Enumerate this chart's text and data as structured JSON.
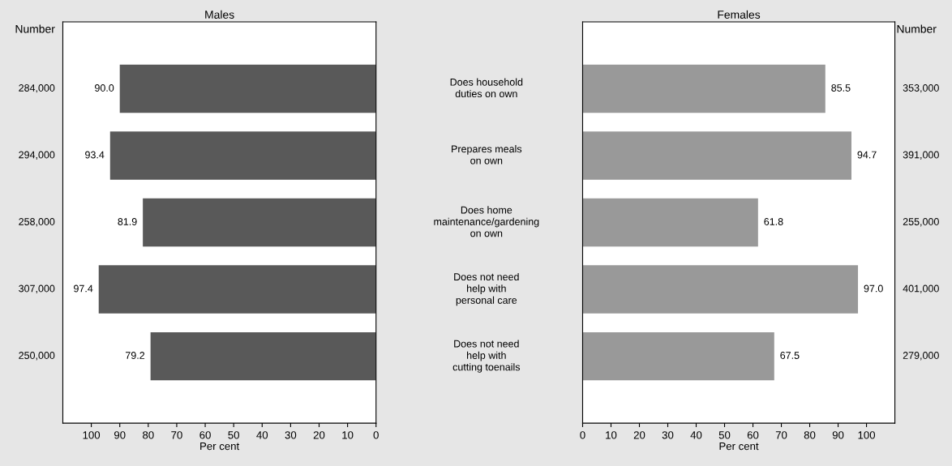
{
  "chart_data": [
    {
      "type": "bar",
      "orientation": "horizontal",
      "title": "Males",
      "xlabel": "Per cent",
      "ylabel": "Number",
      "categories": [
        "Does household\nduties on own",
        "Prepares meals\non own",
        "Does home\nmaintenance/gardening\non own",
        "Does not need\nhelp with\npersonal care",
        "Does not need\nhelp with\ncutting toenails"
      ],
      "values": [
        90.0,
        93.4,
        81.9,
        97.4,
        79.2
      ],
      "color": "#595959",
      "value_labels": [
        "90.0",
        "93.4",
        "81.9",
        "97.4",
        "79.2"
      ],
      "xlim": [
        110,
        0
      ],
      "xticks": [
        0,
        10,
        20,
        30,
        40,
        50,
        60,
        70,
        80,
        90,
        100
      ],
      "annotations": [
        "284,000",
        "294,000",
        "258,000",
        "307,000",
        "250,000"
      ]
    },
    {
      "type": "bar",
      "orientation": "horizontal",
      "title": "Females",
      "xlabel": "Per cent",
      "ylabel": "Number",
      "categories": [
        null,
        null,
        null,
        null,
        null
      ],
      "values": [
        85.5,
        94.7,
        61.8,
        97.0,
        67.5
      ],
      "color": "#999999",
      "value_labels": [
        "85.5",
        "94.7",
        "61.8",
        "97.0",
        "67.5"
      ],
      "xlim": [
        0,
        110
      ],
      "xticks": [
        0,
        10,
        20,
        30,
        40,
        50,
        60,
        70,
        80,
        90,
        100
      ],
      "annotations": [
        "353,000",
        "391,000",
        "255,000",
        "401,000",
        "279,000"
      ]
    }
  ]
}
